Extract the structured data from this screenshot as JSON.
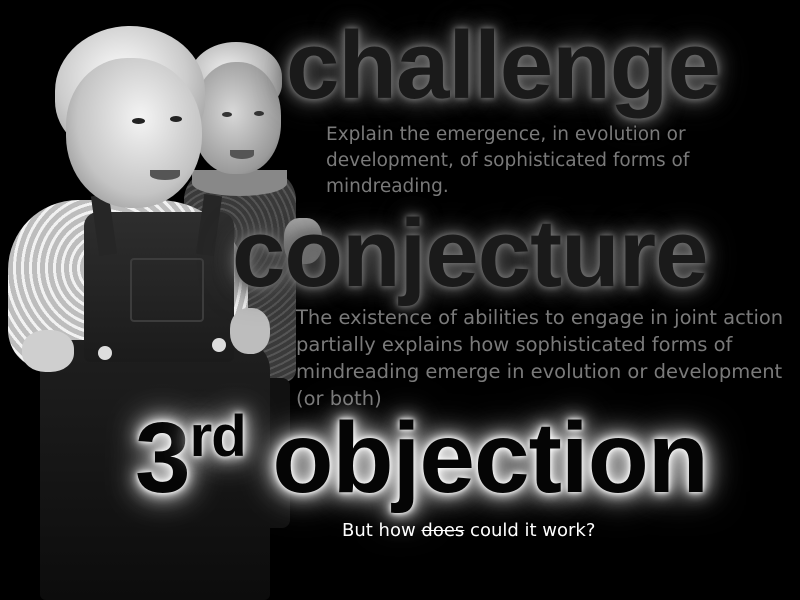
{
  "slide": {
    "sections": {
      "challenge": {
        "heading": "challenge",
        "text": "Explain the emergence, in evolution or development, of sophisticated forms of mindreading."
      },
      "conjecture": {
        "heading": "conjecture",
        "text": "The existence of abilities to engage in joint action partially explains how sophisticated forms of mindreading emerge in evolution or development (or both)"
      },
      "objection": {
        "ordinal_number": "3",
        "ordinal_suffix": "rd",
        "heading": "objection"
      }
    },
    "note": {
      "before": "But how",
      "struck": "does",
      "after": "could it work?"
    },
    "colors": {
      "background": "#000000",
      "heading_dark": "#1a1a1a",
      "body_text": "#7a7a7a",
      "note_text": "#ffffff"
    }
  }
}
